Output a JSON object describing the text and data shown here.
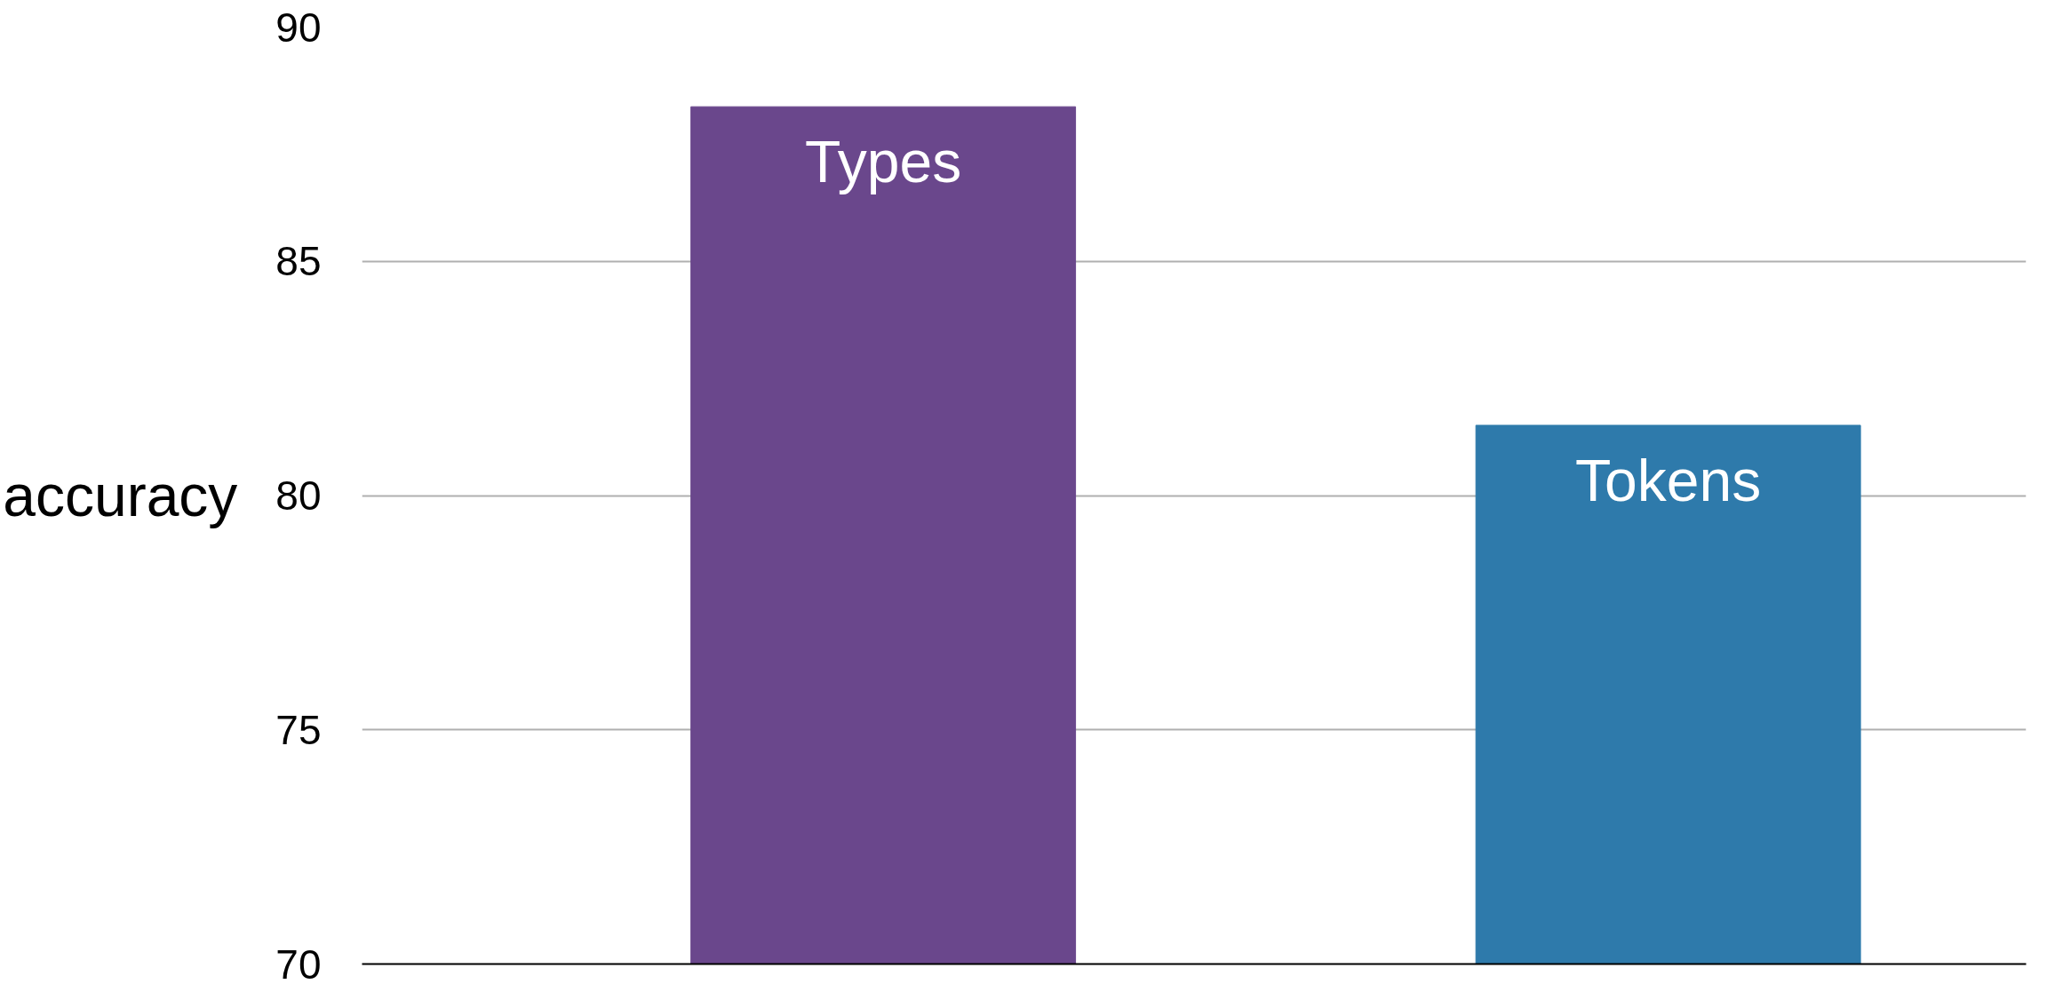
{
  "chart_data": {
    "type": "bar",
    "ylabel": "accuracy",
    "categories": [
      "Types",
      "Tokens"
    ],
    "values": [
      88.3,
      81.5
    ],
    "colors": [
      "#6a478c",
      "#2e7aab"
    ],
    "ylim": [
      70,
      90
    ],
    "yticks": [
      70,
      75,
      80,
      85,
      90
    ],
    "grid": "y"
  }
}
